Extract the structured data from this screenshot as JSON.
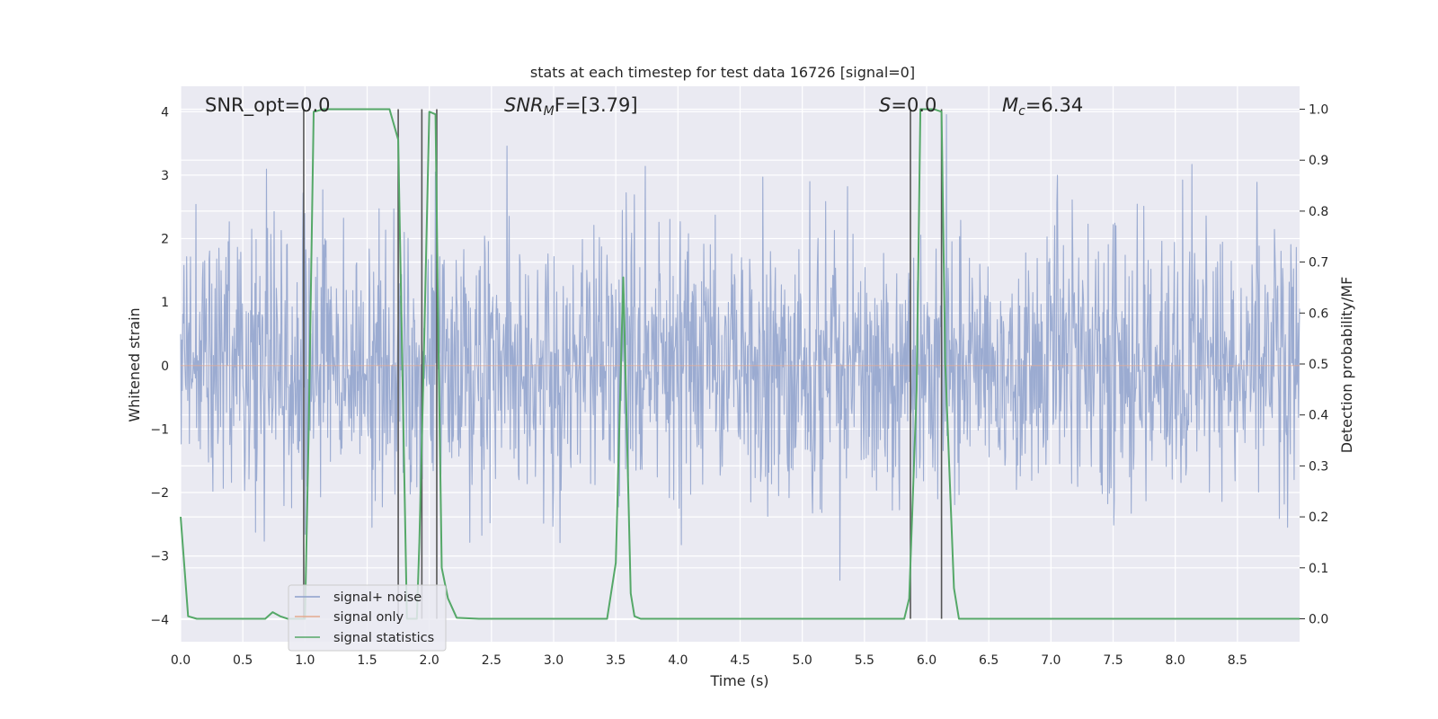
{
  "chart_data": {
    "type": "line",
    "title": "stats at each timestep for test data 16726 [signal=0]",
    "xlabel": "Time (s)",
    "ylabel": "Whitened strain",
    "y2label": "Detection probability/MF",
    "xlim": [
      0.0,
      9.0
    ],
    "ylim": [
      -4.35,
      4.4
    ],
    "y2lim": [
      -0.045,
      1.045
    ],
    "xticks": [
      "0.0",
      "0.5",
      "1.0",
      "1.5",
      "2.0",
      "2.5",
      "3.0",
      "3.5",
      "4.0",
      "4.5",
      "5.0",
      "5.5",
      "6.0",
      "6.5",
      "7.0",
      "7.5",
      "8.0",
      "8.5"
    ],
    "yticks": [
      "4",
      "3",
      "2",
      "1",
      "0",
      "−1",
      "−2",
      "−3",
      "−4"
    ],
    "y2ticks": [
      "1.0",
      "0.9",
      "0.8",
      "0.7",
      "0.6",
      "0.5",
      "0.4",
      "0.3",
      "0.2",
      "0.1",
      "0.0"
    ],
    "grid": true,
    "legend_position": "lower-left",
    "annotations": {
      "snr_opt": "SNR_opt=0.0",
      "snr_mf_base": "SNR",
      "snr_mf_sub": "M",
      "snr_mf_rest": "F=[3.79]",
      "s_var": "S",
      "s_rest": "=0.0",
      "mc_base": "M",
      "mc_sub": "c",
      "mc_rest": "=6.34"
    },
    "series": [
      {
        "name": "signal+ noise",
        "color": "#8da0cb",
        "kind": "noise-strain",
        "samples": 2048,
        "sigma": 1.05,
        "max_abs": 4.0
      },
      {
        "name": "signal only",
        "color": "#e5a98f",
        "kind": "flat",
        "x": [
          0.0,
          9.0
        ],
        "y": [
          0.0,
          0.0
        ]
      },
      {
        "name": "signal statistics",
        "color": "#55a868",
        "axis": "right",
        "x": [
          0.0,
          0.06,
          0.13,
          0.2,
          0.3,
          0.4,
          0.5,
          0.6,
          0.68,
          0.74,
          0.8,
          0.86,
          0.92,
          0.98,
          1.0,
          1.03,
          1.07,
          1.15,
          1.3,
          1.5,
          1.68,
          1.75,
          1.79,
          1.82,
          1.86,
          1.9,
          1.92,
          1.95,
          2.0,
          2.05,
          2.07,
          2.1,
          2.15,
          2.22,
          2.4,
          2.8,
          3.2,
          3.43,
          3.5,
          3.56,
          3.62,
          3.65,
          3.7,
          3.9,
          4.5,
          5.0,
          5.5,
          5.82,
          5.86,
          5.92,
          5.95,
          6.0,
          6.06,
          6.12,
          6.15,
          6.22,
          6.26,
          6.4,
          7.0,
          8.0,
          8.9,
          8.98,
          9.0
        ],
        "y": [
          0.2,
          0.005,
          0.0,
          0.0,
          0.0,
          0.0,
          0.0,
          0.0,
          0.0,
          0.013,
          0.005,
          0.0,
          0.0,
          0.0,
          0.0,
          0.37,
          0.995,
          1.0,
          1.0,
          1.0,
          1.0,
          0.94,
          0.4,
          0.0,
          0.0,
          0.0,
          0.15,
          0.45,
          0.995,
          0.99,
          0.6,
          0.1,
          0.04,
          0.002,
          0.0,
          0.0,
          0.0,
          0.0,
          0.11,
          0.67,
          0.05,
          0.005,
          0.0,
          0.0,
          0.0,
          0.0,
          0.0,
          0.0,
          0.04,
          0.45,
          1.0,
          1.0,
          1.0,
          0.995,
          0.5,
          0.06,
          0.0,
          0.0,
          0.0,
          0.0,
          0.0,
          0.0,
          0.0
        ]
      }
    ],
    "vertical_markers": [
      {
        "x": 0.99,
        "top": 1.0
      },
      {
        "x": 1.75,
        "top": 1.0
      },
      {
        "x": 1.94,
        "top": 1.0
      },
      {
        "x": 2.06,
        "top": 1.0
      },
      {
        "x": 5.87,
        "top": 1.0
      },
      {
        "x": 6.12,
        "top": 1.0
      }
    ]
  }
}
